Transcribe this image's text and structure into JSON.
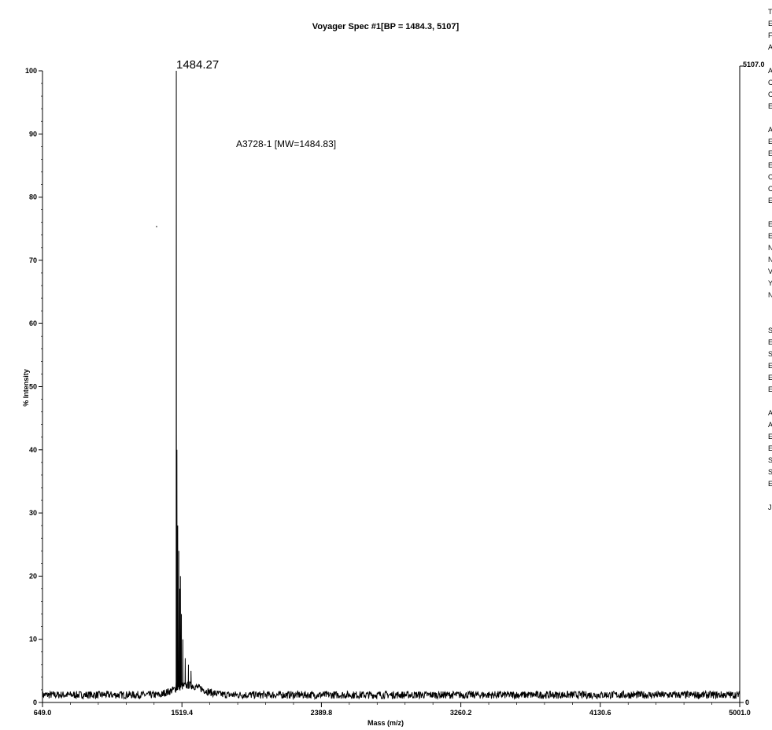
{
  "chart_data": {
    "type": "line",
    "title": "Voyager Spec #1[BP = 1484.3, 5107]",
    "xlabel": "Mass (m/z)",
    "ylabel": "% Intensity",
    "xlim": [
      649.0,
      5001.0
    ],
    "ylim": [
      0,
      100
    ],
    "x_ticks": [
      "649.0",
      "1519.4",
      "2389.8",
      "3260.2",
      "4130.6",
      "5001.0"
    ],
    "x_tick_values": [
      649.0,
      1519.4,
      2389.8,
      3260.2,
      4130.6,
      5001.0
    ],
    "y_ticks": [
      "0",
      "10",
      "20",
      "30",
      "40",
      "50",
      "60",
      "70",
      "80",
      "90",
      "100"
    ],
    "y_tick_values": [
      0,
      10,
      20,
      30,
      40,
      50,
      60,
      70,
      80,
      90,
      100
    ],
    "right_axis_max_label": "5107.0",
    "right_axis_min_label": "0",
    "peak_label": "1484.27",
    "annotation": "A3728-1 [MW=1484.83]",
    "grid": false,
    "legend": "none",
    "baseline_level": 1.2,
    "peaks": [
      {
        "x": 1484.27,
        "y": 100
      },
      {
        "x": 1488.0,
        "y": 40
      },
      {
        "x": 1493.0,
        "y": 28
      },
      {
        "x": 1500.0,
        "y": 24
      },
      {
        "x": 1506.0,
        "y": 18
      },
      {
        "x": 1510.0,
        "y": 20
      },
      {
        "x": 1516.0,
        "y": 14
      },
      {
        "x": 1525.0,
        "y": 10
      },
      {
        "x": 1540.0,
        "y": 7
      },
      {
        "x": 1560.0,
        "y": 6
      },
      {
        "x": 1576.0,
        "y": 5
      }
    ],
    "line_color": "#000000"
  },
  "right_margin_glyphs": [
    "T",
    "E",
    "F",
    "A",
    "",
    "A",
    "C",
    "C",
    "E",
    "",
    "A",
    "E",
    "E",
    "E",
    "C",
    "C",
    "E",
    "",
    "E",
    "E",
    "N",
    "N",
    "V",
    "Y",
    "N",
    "",
    "",
    "S",
    "E",
    "S",
    "E",
    "E",
    "E",
    "",
    "A",
    "A",
    "E",
    "E",
    "S",
    "S",
    "E",
    "",
    "J"
  ]
}
